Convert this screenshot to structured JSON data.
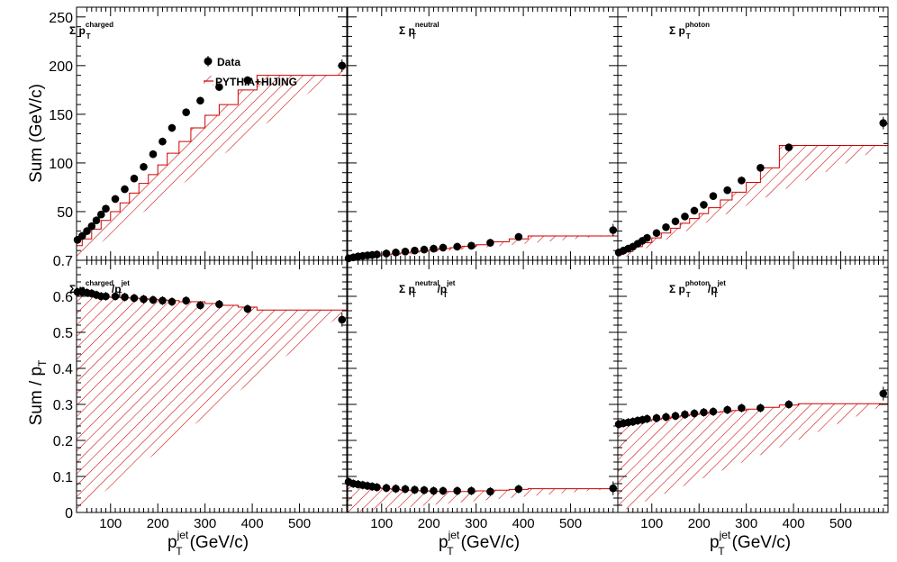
{
  "chart_data": {
    "type": "scatter",
    "colors": {
      "data": "#000000",
      "mc": "#cc0000",
      "frame": "#000000"
    },
    "legend": {
      "placement": "top-left of first panel",
      "entries": [
        "Data",
        "PYTHIA+HIJING"
      ]
    },
    "x_ticks": [
      100,
      200,
      300,
      400,
      500
    ],
    "x_tick_labels": [
      "100",
      "200",
      "300",
      "400",
      "500"
    ],
    "xlim": [
      28,
      600
    ],
    "xlabel": {
      "p": "p",
      "sub": "T",
      "sup": "jet",
      "unit": "(GeV/c)"
    },
    "ylabel_top": "Sum (GeV/c)",
    "ylabel_bottom": {
      "main": "Sum / p",
      "sub": "T"
    },
    "ylim_top": [
      0,
      260
    ],
    "ylim_bottom": [
      0,
      0.7
    ],
    "y_ticks_top": [
      50,
      100,
      150,
      200,
      250
    ],
    "y_tick_labels_top": [
      "50",
      "100",
      "150",
      "200",
      "250"
    ],
    "y_ticks_bottom": [
      0,
      0.1,
      0.2,
      0.3,
      0.4,
      0.5,
      0.6,
      0.7
    ],
    "y_tick_labels_bottom": [
      "0",
      "0.1",
      "0.2",
      "0.3",
      "0.4",
      "0.5",
      "0.6",
      "0.7"
    ],
    "x": [
      30,
      40,
      50,
      60,
      70,
      80,
      90,
      110,
      130,
      150,
      170,
      190,
      210,
      230,
      260,
      290,
      330,
      390,
      590
    ],
    "mc_edges": [
      28,
      40,
      60,
      80,
      100,
      120,
      140,
      160,
      180,
      200,
      220,
      245,
      270,
      300,
      330,
      370,
      410,
      600
    ],
    "panels": [
      {
        "id": "charged-sum",
        "label": {
          "prefix": "Σ",
          "p": "p",
          "sub": "T",
          "sup": "charged",
          "den": ""
        },
        "data": [
          21,
          25,
          30,
          35,
          41,
          47,
          53,
          63,
          73,
          84,
          96,
          109,
          122,
          136,
          152,
          164,
          178,
          185,
          200
        ],
        "mc": [
          15,
          22,
          32,
          41,
          50,
          59,
          69,
          79,
          88,
          98,
          110,
          122,
          136,
          149,
          160,
          175,
          190,
          200
        ]
      },
      {
        "id": "neutral-sum",
        "label": {
          "prefix": "Σ",
          "p": "p",
          "sub": "T",
          "sup": "neutral",
          "den": ""
        },
        "data": [
          2,
          3,
          4,
          4.5,
          5,
          5.5,
          6,
          7,
          8,
          9,
          10,
          11,
          12,
          13,
          14,
          15,
          18,
          24,
          31
        ],
        "mc": [
          1.5,
          2.5,
          3.5,
          4.5,
          5.5,
          6.5,
          7.5,
          8.5,
          9.5,
          10.5,
          12,
          13,
          14.5,
          16,
          19,
          22,
          25,
          26
        ]
      },
      {
        "id": "photon-sum",
        "label": {
          "prefix": "Σ",
          "p": "p",
          "sub": "T",
          "sup": "photon",
          "den": ""
        },
        "data": [
          8,
          10,
          12,
          14,
          17,
          20,
          23,
          28,
          34,
          40,
          45,
          51,
          57,
          66,
          72,
          82,
          95,
          116,
          141
        ],
        "mc": [
          6,
          9,
          14,
          18,
          23,
          28,
          33,
          38,
          43,
          48,
          54,
          62,
          70,
          80,
          95,
          118,
          118,
          118
        ]
      },
      {
        "id": "charged-frac",
        "label": {
          "prefix": "Σ",
          "p": "p",
          "sub": "T",
          "sup": "charged",
          "den": "jet"
        },
        "data": [
          0.612,
          0.612,
          0.61,
          0.608,
          0.604,
          0.6,
          0.6,
          0.6,
          0.598,
          0.595,
          0.592,
          0.59,
          0.588,
          0.585,
          0.588,
          0.575,
          0.578,
          0.565,
          0.535
        ],
        "mc": [
          0.61,
          0.605,
          0.6,
          0.598,
          0.597,
          0.596,
          0.595,
          0.593,
          0.592,
          0.59,
          0.588,
          0.585,
          0.585,
          0.58,
          0.575,
          0.57,
          0.562,
          0.56
        ]
      },
      {
        "id": "neutral-frac",
        "label": {
          "prefix": "Σ",
          "p": "p",
          "sub": "T",
          "sup": "neutral",
          "den": "jet"
        },
        "data": [
          0.085,
          0.08,
          0.078,
          0.076,
          0.074,
          0.072,
          0.07,
          0.068,
          0.066,
          0.065,
          0.063,
          0.062,
          0.06,
          0.06,
          0.06,
          0.06,
          0.058,
          0.065,
          0.067
        ],
        "mc": [
          0.075,
          0.072,
          0.07,
          0.068,
          0.066,
          0.064,
          0.062,
          0.061,
          0.06,
          0.059,
          0.058,
          0.058,
          0.058,
          0.06,
          0.062,
          0.064,
          0.066,
          0.067
        ]
      },
      {
        "id": "photon-frac",
        "label": {
          "prefix": "Σ",
          "p": "p",
          "sub": "T",
          "sup": "photon",
          "den": "jet"
        },
        "data": [
          0.245,
          0.248,
          0.25,
          0.252,
          0.255,
          0.257,
          0.26,
          0.262,
          0.265,
          0.268,
          0.272,
          0.275,
          0.278,
          0.28,
          0.285,
          0.29,
          0.29,
          0.3,
          0.33
        ],
        "mc": [
          0.238,
          0.245,
          0.25,
          0.254,
          0.258,
          0.262,
          0.265,
          0.268,
          0.272,
          0.275,
          0.278,
          0.28,
          0.283,
          0.287,
          0.292,
          0.298,
          0.302,
          0.302
        ]
      }
    ]
  }
}
